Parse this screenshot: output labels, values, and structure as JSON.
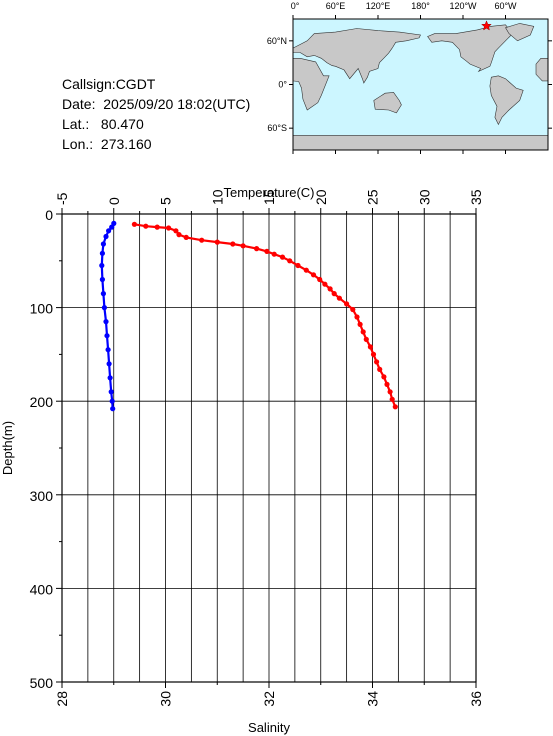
{
  "info": {
    "callsign": "Callsign:CGDT",
    "date": "Date:  2025/09/20 18:02(UTC)",
    "lat": "Lat.:   80.470",
    "lon": "Lon.:  273.160"
  },
  "map": {
    "top_labels": [
      "0°",
      "60°E",
      "120°E",
      "180°",
      "120°W",
      "60°W"
    ],
    "left_labels": [
      "60°N",
      "0°",
      "60°S"
    ],
    "ocean_color": "#ccf6ff",
    "land_color": "#c8c8c8",
    "marker_color": "#ff0000"
  },
  "chart_data": {
    "type": "scatter",
    "ylabel": "Depth(m)",
    "y_ticks": [
      "0",
      "100",
      "200",
      "300",
      "400",
      "500"
    ],
    "ylim": [
      0,
      500
    ],
    "y_reversed": true,
    "top_axis": {
      "label": "Temperature(C)",
      "ticks": [
        "-5",
        "0",
        "5",
        "10",
        "15",
        "20",
        "25",
        "30",
        "35"
      ],
      "range": [
        -5,
        35
      ]
    },
    "bottom_axis": {
      "label": "Salinity",
      "ticks": [
        "28",
        "30",
        "32",
        "34",
        "36"
      ],
      "range": [
        28,
        36
      ]
    },
    "series": [
      {
        "axis": "top",
        "color": "#ff0000",
        "points": [
          [
            2.0,
            11
          ],
          [
            3.1,
            13
          ],
          [
            4.2,
            14
          ],
          [
            5.3,
            15
          ],
          [
            6.0,
            18
          ],
          [
            6.3,
            22
          ],
          [
            7.0,
            25
          ],
          [
            8.5,
            28
          ],
          [
            10.0,
            30
          ],
          [
            11.5,
            32
          ],
          [
            12.5,
            34
          ],
          [
            13.8,
            37
          ],
          [
            14.8,
            40
          ],
          [
            15.5,
            43
          ],
          [
            16.3,
            46
          ],
          [
            17.0,
            50
          ],
          [
            17.8,
            55
          ],
          [
            18.6,
            60
          ],
          [
            19.3,
            65
          ],
          [
            19.9,
            70
          ],
          [
            20.4,
            75
          ],
          [
            20.9,
            80
          ],
          [
            21.3,
            85
          ],
          [
            21.8,
            90
          ],
          [
            22.5,
            96
          ],
          [
            23.1,
            102
          ],
          [
            23.5,
            110
          ],
          [
            23.8,
            118
          ],
          [
            24.1,
            126
          ],
          [
            24.4,
            134
          ],
          [
            24.8,
            142
          ],
          [
            25.1,
            150
          ],
          [
            25.4,
            158
          ],
          [
            25.7,
            166
          ],
          [
            26.1,
            174
          ],
          [
            26.4,
            182
          ],
          [
            26.7,
            190
          ],
          [
            26.9,
            198
          ],
          [
            27.2,
            206
          ]
        ],
        "grid_intervals": {
          "x": 2.5,
          "y": 50
        }
      },
      {
        "axis": "bottom",
        "color": "#0000ff",
        "points": [
          [
            29.0,
            10
          ],
          [
            28.96,
            14
          ],
          [
            28.9,
            18
          ],
          [
            28.85,
            24
          ],
          [
            28.8,
            32
          ],
          [
            28.78,
            42
          ],
          [
            28.77,
            55
          ],
          [
            28.78,
            70
          ],
          [
            28.8,
            85
          ],
          [
            28.82,
            100
          ],
          [
            28.85,
            115
          ],
          [
            28.87,
            130
          ],
          [
            28.89,
            145
          ],
          [
            28.91,
            160
          ],
          [
            28.93,
            175
          ],
          [
            28.95,
            190
          ],
          [
            28.97,
            200
          ],
          [
            28.98,
            208
          ]
        ]
      }
    ]
  }
}
